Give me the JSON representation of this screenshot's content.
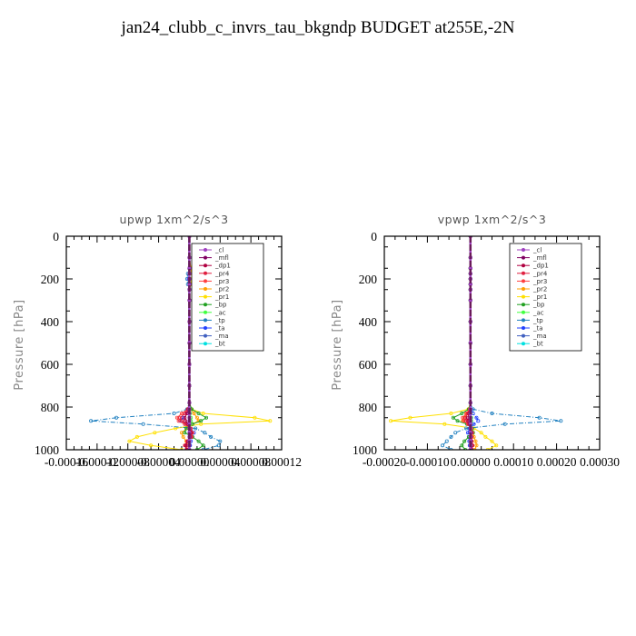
{
  "figure_title": "jan24_clubb_c_invrs_tau_bkgndp  BUDGET at255E,-2N",
  "legend_entries": [
    {
      "name": "_cl",
      "color": "#a040c0"
    },
    {
      "name": "_mfl",
      "color": "#800060"
    },
    {
      "name": "_dp1",
      "color": "#b00040"
    },
    {
      "name": "_pr4",
      "color": "#e02040"
    },
    {
      "name": "_pr3",
      "color": "#ff4040"
    },
    {
      "name": "_pr2",
      "color": "#ffa000"
    },
    {
      "name": "_pr1",
      "color": "#ffe000"
    },
    {
      "name": "_bp",
      "color": "#20a020"
    },
    {
      "name": "_ac",
      "color": "#40ff40"
    },
    {
      "name": "_tp",
      "color": "#2080c0"
    },
    {
      "name": "_ta",
      "color": "#2040ff"
    },
    {
      "name": "_ma",
      "color": "#4060c0"
    },
    {
      "name": "_bt",
      "color": "#00e0e0"
    }
  ],
  "chart_data": [
    {
      "type": "line",
      "title": "upwp   1xm^2/s^3",
      "ylabel": "Pressure [hPa]",
      "xlabel": "",
      "ylim": [
        1000,
        0
      ],
      "xlim": [
        -0.00016,
        0.00012
      ],
      "x_tick_labels": [
        "-0.00016",
        "-0.00012",
        "-0.00008",
        "-0.00004",
        "0.00000",
        "0.00004",
        "0.00008",
        "0.00012"
      ],
      "x_tick_values": [
        -0.00016,
        -0.00012,
        -8e-05,
        -4e-05,
        0.0,
        4e-05,
        8e-05,
        0.00012
      ],
      "y_tick_labels": [
        "0",
        "200",
        "400",
        "600",
        "800",
        "1000"
      ],
      "y_tick_values": [
        0,
        200,
        400,
        600,
        800,
        1000
      ],
      "pressure_levels": [
        0,
        100,
        150,
        175,
        200,
        225,
        250,
        300,
        400,
        500,
        600,
        700,
        780,
        810,
        830,
        850,
        865,
        880,
        900,
        920,
        940,
        960,
        980,
        1000
      ],
      "series": [
        {
          "name": "_pr1",
          "x": [
            0,
            0,
            2e-06,
            3e-06,
            3e-06,
            2e-06,
            0,
            0,
            0,
            0,
            0,
            0,
            0,
            3e-06,
            1.8e-05,
            8.5e-05,
            0.000105,
            1.5e-05,
            -1.8e-05,
            -4.5e-05,
            -6.8e-05,
            -7.8e-05,
            -5e-05,
            -1e-05
          ]
        },
        {
          "name": "_pr2",
          "x": [
            0,
            0,
            2e-06,
            3e-06,
            4e-06,
            2e-06,
            0,
            0,
            0,
            0,
            0,
            0,
            0,
            2e-06,
            6e-06,
            1e-05,
            1.2e-05,
            4e-06,
            -3e-06,
            -1e-05,
            -8e-06,
            -4e-06,
            -2e-06,
            0
          ]
        },
        {
          "name": "_tp",
          "x": [
            0,
            0,
            0,
            -2e-06,
            -3e-06,
            -2e-06,
            0,
            0,
            0,
            0,
            0,
            0,
            0,
            -3e-06,
            -2e-05,
            -9.5e-05,
            -0.000128,
            -6e-05,
            8e-06,
            2e-05,
            2.8e-05,
            4e-05,
            3.8e-05,
            1.8e-05
          ]
        },
        {
          "name": "_ta",
          "x": [
            0,
            0,
            0,
            0,
            -1e-06,
            0,
            0,
            0,
            0,
            0,
            0,
            0,
            0,
            0,
            -2e-06,
            -8e-06,
            -1.2e-05,
            -6e-06,
            2e-06,
            6e-06,
            4e-06,
            2e-06,
            1e-06,
            0
          ]
        },
        {
          "name": "_bp",
          "x": [
            0,
            0,
            0,
            0,
            0,
            0,
            0,
            0,
            0,
            0,
            0,
            0,
            0,
            3e-06,
            1.2e-05,
            2.2e-05,
            1.5e-05,
            4e-06,
            -4e-06,
            -6e-06,
            4e-06,
            1.2e-05,
            1.8e-05,
            1e-05
          ]
        },
        {
          "name": "_pr3",
          "x": [
            0,
            0,
            0,
            0,
            0,
            0,
            0,
            0,
            0,
            0,
            0,
            0,
            0,
            -2e-06,
            -1e-05,
            -1.6e-05,
            -1.4e-05,
            -6e-06,
            2e-06,
            4e-06,
            3e-06,
            -3e-06,
            -6e-06,
            -3e-06
          ]
        },
        {
          "name": "_pr4",
          "x": [
            0,
            0,
            0,
            0,
            0,
            0,
            0,
            0,
            0,
            0,
            0,
            0,
            0,
            -2e-06,
            -6e-06,
            -1.2e-05,
            -1e-05,
            -4e-06,
            1e-06,
            3e-06,
            2e-06,
            -2e-06,
            -4e-06,
            -2e-06
          ]
        },
        {
          "name": "_dp1",
          "x": [
            0,
            0,
            0,
            0,
            0,
            0,
            0,
            0,
            0,
            0,
            0,
            0,
            0,
            -1e-06,
            -3e-06,
            -6e-06,
            -5e-06,
            -2e-06,
            0,
            2e-06,
            1e-06,
            -2e-06,
            -5e-06,
            -4e-06
          ]
        },
        {
          "name": "_ac",
          "x": [
            0,
            0,
            0,
            0,
            0,
            0,
            0,
            0,
            0,
            0,
            0,
            0,
            0,
            0,
            1e-06,
            2e-06,
            2e-06,
            1e-06,
            0,
            0,
            0,
            0,
            0,
            0
          ]
        },
        {
          "name": "_ma",
          "x": [
            0,
            0,
            0,
            0,
            0,
            0,
            0,
            0,
            0,
            0,
            0,
            0,
            0,
            0,
            0,
            0,
            0,
            0,
            0,
            0,
            0,
            0,
            0,
            0
          ]
        },
        {
          "name": "_bt",
          "x": [
            0,
            0,
            0,
            0,
            0,
            0,
            0,
            0,
            0,
            0,
            0,
            0,
            0,
            0,
            0,
            0,
            0,
            0,
            0,
            0,
            0,
            0,
            0,
            0
          ]
        },
        {
          "name": "_mfl",
          "x": [
            0,
            0,
            0,
            0,
            0,
            0,
            0,
            0,
            0,
            0,
            0,
            0,
            0,
            0,
            0,
            0,
            0,
            0,
            0,
            0,
            0,
            0,
            0,
            0
          ]
        },
        {
          "name": "_cl",
          "x": [
            0,
            0,
            0,
            0,
            0,
            0,
            0,
            0,
            0,
            0,
            0,
            0,
            0,
            0,
            0,
            0,
            0,
            0,
            0,
            0,
            0,
            0,
            0,
            0
          ]
        }
      ]
    },
    {
      "type": "line",
      "title": "vpwp   1xm^2/s^3",
      "ylabel": "Pressure [hPa]",
      "xlabel": "",
      "ylim": [
        1000,
        0
      ],
      "xlim": [
        -0.0002,
        0.0003
      ],
      "x_tick_labels": [
        "-0.00020",
        "-0.00010",
        "0.00000",
        "0.00010",
        "0.00020",
        "0.00030"
      ],
      "x_tick_values": [
        -0.0002,
        -0.0001,
        0.0,
        0.0001,
        0.0002,
        0.0003
      ],
      "y_tick_labels": [
        "0",
        "200",
        "400",
        "600",
        "800",
        "1000"
      ],
      "y_tick_values": [
        0,
        200,
        400,
        600,
        800,
        1000
      ],
      "pressure_levels": [
        0,
        100,
        150,
        175,
        200,
        225,
        250,
        300,
        400,
        500,
        600,
        700,
        780,
        810,
        830,
        850,
        865,
        880,
        900,
        920,
        940,
        960,
        980,
        1000
      ],
      "series": [
        {
          "name": "_pr1",
          "x": [
            0,
            0,
            0,
            0,
            0,
            0,
            0,
            0,
            0,
            0,
            0,
            0,
            0,
            -5e-06,
            -4.5e-05,
            -0.00014,
            -0.000185,
            -6e-05,
            8e-06,
            2.5e-05,
            3.5e-05,
            5e-05,
            6e-05,
            4e-05
          ]
        },
        {
          "name": "_pr2",
          "x": [
            0,
            0,
            0,
            0,
            0,
            0,
            0,
            0,
            0,
            0,
            0,
            0,
            0,
            -2e-06,
            -8e-06,
            -1.5e-05,
            -1.8e-05,
            -6e-06,
            2e-06,
            6e-06,
            8e-06,
            1.2e-05,
            1.4e-05,
            1e-05
          ]
        },
        {
          "name": "_tp",
          "x": [
            0,
            0,
            0,
            0,
            0,
            0,
            0,
            0,
            0,
            0,
            0,
            0,
            0,
            6e-06,
            5e-05,
            0.00016,
            0.00021,
            8e-05,
            -1e-05,
            -3.5e-05,
            -4.5e-05,
            -5.5e-05,
            -6.5e-05,
            -4.5e-05
          ]
        },
        {
          "name": "_ta",
          "x": [
            0,
            0,
            0,
            0,
            0,
            0,
            0,
            0,
            0,
            0,
            0,
            0,
            0,
            1e-06,
            6e-06,
            1.4e-05,
            1.8e-05,
            8e-06,
            -2e-06,
            -6e-06,
            -4e-06,
            -3e-06,
            -2e-06,
            0
          ]
        },
        {
          "name": "_bp",
          "x": [
            0,
            0,
            0,
            0,
            0,
            0,
            0,
            0,
            0,
            0,
            0,
            0,
            0,
            -4e-06,
            -2e-05,
            -4e-05,
            -3e-05,
            -8e-06,
            4e-06,
            6e-06,
            -4e-06,
            -1.4e-05,
            -2e-05,
            -1.2e-05
          ]
        },
        {
          "name": "_pr3",
          "x": [
            0,
            0,
            0,
            0,
            0,
            0,
            0,
            0,
            0,
            0,
            0,
            0,
            0,
            -2e-06,
            -1e-05,
            -1.8e-05,
            -1.6e-05,
            -6e-06,
            2e-06,
            4e-06,
            3e-06,
            3e-06,
            5e-06,
            3e-06
          ]
        },
        {
          "name": "_pr4",
          "x": [
            0,
            0,
            0,
            0,
            0,
            0,
            0,
            0,
            0,
            0,
            0,
            0,
            0,
            -1e-06,
            -6e-06,
            -1.2e-05,
            -1e-05,
            -4e-06,
            1e-06,
            3e-06,
            2e-06,
            2e-06,
            4e-06,
            2e-06
          ]
        },
        {
          "name": "_dp1",
          "x": [
            0,
            0,
            0,
            0,
            0,
            0,
            0,
            0,
            0,
            0,
            0,
            0,
            0,
            0,
            -3e-06,
            -6e-06,
            -5e-06,
            -2e-06,
            0,
            2e-06,
            1e-06,
            2e-06,
            4e-06,
            3e-06
          ]
        },
        {
          "name": "_ac",
          "x": [
            0,
            0,
            0,
            0,
            0,
            0,
            0,
            0,
            0,
            0,
            0,
            0,
            0,
            0,
            1e-06,
            2e-06,
            2e-06,
            1e-06,
            0,
            0,
            0,
            0,
            0,
            0
          ]
        },
        {
          "name": "_ma",
          "x": [
            0,
            0,
            0,
            0,
            0,
            0,
            0,
            0,
            0,
            0,
            0,
            0,
            0,
            0,
            0,
            0,
            0,
            0,
            0,
            0,
            0,
            0,
            0,
            0
          ]
        },
        {
          "name": "_bt",
          "x": [
            0,
            0,
            0,
            0,
            0,
            0,
            0,
            0,
            0,
            0,
            0,
            0,
            0,
            0,
            0,
            0,
            0,
            0,
            0,
            0,
            0,
            0,
            0,
            0
          ]
        },
        {
          "name": "_mfl",
          "x": [
            0,
            0,
            0,
            0,
            0,
            0,
            0,
            0,
            0,
            0,
            0,
            0,
            0,
            0,
            0,
            0,
            0,
            0,
            0,
            0,
            0,
            0,
            0,
            0
          ]
        },
        {
          "name": "_cl",
          "x": [
            0,
            0,
            0,
            0,
            0,
            0,
            0,
            0,
            0,
            0,
            0,
            0,
            0,
            0,
            0,
            0,
            0,
            0,
            0,
            0,
            0,
            0,
            0,
            0
          ]
        }
      ]
    }
  ]
}
